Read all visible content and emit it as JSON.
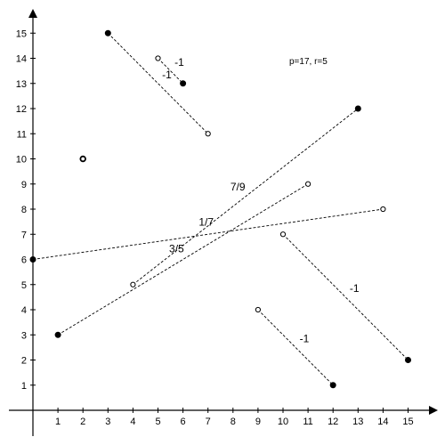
{
  "chart_data": {
    "type": "scatter",
    "title": "",
    "xlabel": "",
    "ylabel": "",
    "xlim": [
      0,
      15
    ],
    "ylim": [
      0,
      15
    ],
    "x_ticks": [
      "1",
      "2",
      "3",
      "4",
      "5",
      "6",
      "7",
      "8",
      "9",
      "10",
      "11",
      "12",
      "13",
      "14",
      "15"
    ],
    "y_ticks": [
      "1",
      "2",
      "3",
      "4",
      "5",
      "6",
      "7",
      "8",
      "9",
      "10",
      "11",
      "12",
      "13",
      "14",
      "15"
    ],
    "grid": false,
    "annotation": "p=17, r=5",
    "point_styles": [
      "filled",
      "open",
      "open-bold"
    ],
    "segments": [
      {
        "from": {
          "x": 3,
          "y": 15,
          "style": "filled"
        },
        "to": {
          "x": 7,
          "y": 11,
          "style": "open"
        },
        "label": "-1"
      },
      {
        "from": {
          "x": 5,
          "y": 14,
          "style": "open"
        },
        "to": {
          "x": 6,
          "y": 13,
          "style": "filled"
        },
        "label": "-1"
      },
      {
        "from": {
          "x": 1,
          "y": 3,
          "style": "filled"
        },
        "to": {
          "x": 11,
          "y": 9,
          "style": "open"
        },
        "label": "3/5"
      },
      {
        "from": {
          "x": 4,
          "y": 5,
          "style": "open"
        },
        "to": {
          "x": 13,
          "y": 12,
          "style": "filled"
        },
        "label": "7/9"
      },
      {
        "from": {
          "x": 0,
          "y": 6,
          "style": "filled"
        },
        "to": {
          "x": 14,
          "y": 8,
          "style": "open"
        },
        "label": "1/7"
      },
      {
        "from": {
          "x": 10,
          "y": 7,
          "style": "open"
        },
        "to": {
          "x": 15,
          "y": 2,
          "style": "filled"
        },
        "label": "-1"
      },
      {
        "from": {
          "x": 9,
          "y": 4,
          "style": "open"
        },
        "to": {
          "x": 12,
          "y": 1,
          "style": "filled"
        },
        "label": "-1"
      }
    ],
    "isolated_points": [
      {
        "x": 2,
        "y": 10,
        "style": "open-bold"
      }
    ]
  }
}
